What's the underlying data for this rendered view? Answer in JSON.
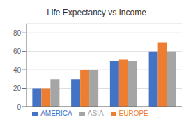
{
  "chart_data": {
    "type": "bar",
    "title": "Life Expectancy vs Income",
    "categories": [
      null,
      null,
      null,
      null
    ],
    "series": [
      {
        "name": "AMERICA",
        "color": "#4472C4",
        "values": [
          20,
          30,
          50,
          60
        ]
      },
      {
        "name": "EUROPE",
        "color": "#ED7D31",
        "values": [
          20,
          40,
          51,
          70
        ]
      },
      {
        "name": "ASIA",
        "color": "#A5A5A5",
        "values": [
          30,
          40,
          50,
          60
        ]
      }
    ],
    "ylim": [
      0,
      90
    ],
    "yticks": [
      0,
      20,
      40,
      60,
      80
    ],
    "grid": true,
    "legend": "bottom",
    "tick_labels": "y"
  }
}
